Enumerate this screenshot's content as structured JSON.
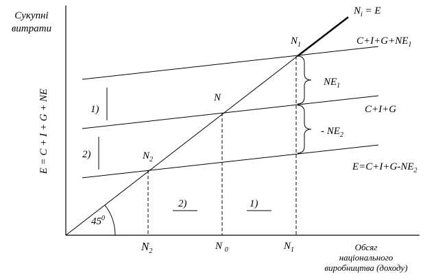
{
  "y_axis": {
    "title_lines": [
      "Сукупні",
      "витрати"
    ],
    "label": "E = C + I + G + NE"
  },
  "x_axis": {
    "title_lines": [
      "Обсяг",
      "національного",
      "виробництва (доходу)"
    ],
    "ticks": [
      {
        "main": "N",
        "sub": "2"
      },
      {
        "main": "N ",
        "sub": "0"
      },
      {
        "main": "N",
        "sub": "1"
      }
    ]
  },
  "lines": [
    {
      "main": "N",
      "sub": "i",
      "tail": " = E"
    },
    {
      "main": "C+I+G+NE",
      "sub": "1"
    },
    {
      "main": "C+I+G"
    },
    {
      "main": "E=C+I+G-NE",
      "sub": "2"
    }
  ],
  "points": [
    {
      "main": "N",
      "sub": "1"
    },
    {
      "main": "N"
    },
    {
      "main": "N",
      "sub": "2"
    }
  ],
  "gaps": [
    {
      "main": "NE",
      "sub": "1"
    },
    {
      "main": "- NE",
      "sub": "2"
    }
  ],
  "markers": [
    "1)",
    "2)",
    "2)",
    "1)"
  ],
  "angle": {
    "main": "45",
    "sup": "0"
  }
}
